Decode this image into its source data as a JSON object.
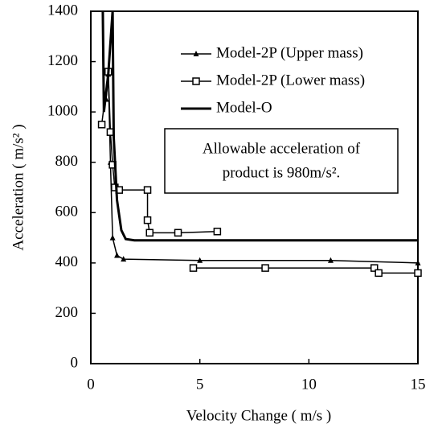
{
  "chart_data": {
    "type": "line",
    "xlabel": "Velocity Change ( m/s )",
    "ylabel": "Acceleration ( m/s² )",
    "annotation": [
      "Allowable acceleration of",
      "product is 980m/s²."
    ],
    "xlim": [
      0,
      15
    ],
    "ylim": [
      0,
      1400
    ],
    "xticks": [
      0,
      5,
      10,
      15
    ],
    "yticks": [
      0,
      200,
      400,
      600,
      800,
      1000,
      1200,
      1400
    ],
    "legend": "upper right",
    "series": [
      {
        "name": "Model-2P (Upper mass)",
        "color": "#000000",
        "marker": "triangle",
        "x": [
          0.7,
          0.8,
          0.9,
          1.0,
          1.2,
          1.5,
          5,
          11,
          15
        ],
        "values": [
          1050,
          1150,
          800,
          500,
          430,
          415,
          410,
          410,
          400
        ]
      },
      {
        "name": "Model-2P (Lower mass)",
        "color": "#000000",
        "marker": "square",
        "x": [
          0.5,
          0.8,
          0.9,
          1.0,
          1.1,
          1.3,
          2.6,
          2.6,
          2.7,
          4,
          5.8,
          null,
          4.7,
          8,
          13,
          13.2,
          15
        ],
        "values": [
          950,
          1160,
          920,
          790,
          700,
          690,
          690,
          570,
          520,
          520,
          525,
          null,
          380,
          380,
          380,
          360,
          360
        ]
      },
      {
        "name": "Model-O",
        "color": "#000000",
        "marker": "none",
        "x": [
          0.55,
          0.6,
          0.8,
          1.0,
          1.05,
          1.2,
          1.4,
          1.6,
          2,
          15
        ],
        "values": [
          1400,
          1000,
          1150,
          1400,
          900,
          650,
          530,
          495,
          490,
          490
        ]
      }
    ]
  }
}
